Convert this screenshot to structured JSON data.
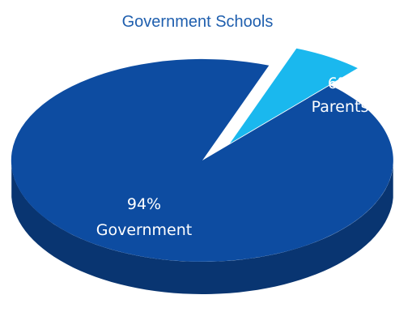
{
  "chart_data": {
    "type": "pie",
    "title": "Government Schools",
    "slices": [
      {
        "label": "Government",
        "value": 94,
        "display": "94%",
        "color": "#0d4ca1"
      },
      {
        "label": "Parents",
        "value": 6,
        "display": "6%",
        "color": "#1ab8ee"
      }
    ],
    "style": "3d-exploded"
  }
}
